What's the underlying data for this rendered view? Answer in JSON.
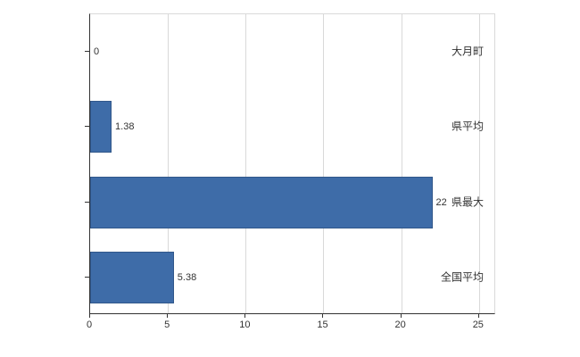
{
  "chart_data": {
    "type": "bar",
    "orientation": "horizontal",
    "title": "",
    "xlabel": "",
    "ylabel": "",
    "categories": [
      "大月町",
      "県平均",
      "県最大",
      "全国平均"
    ],
    "values": [
      0,
      1.38,
      22,
      5.38
    ],
    "value_labels": [
      "0",
      "1.38",
      "22",
      "5.38"
    ],
    "xlim": [
      0,
      26.1
    ],
    "xticks": [
      0,
      5,
      10,
      15,
      20,
      25
    ],
    "bar_color": "#3e6ca8",
    "bar_border_color": "#31578a",
    "grid": true,
    "gridline_color": "#d9d9d9",
    "legend": "none"
  }
}
